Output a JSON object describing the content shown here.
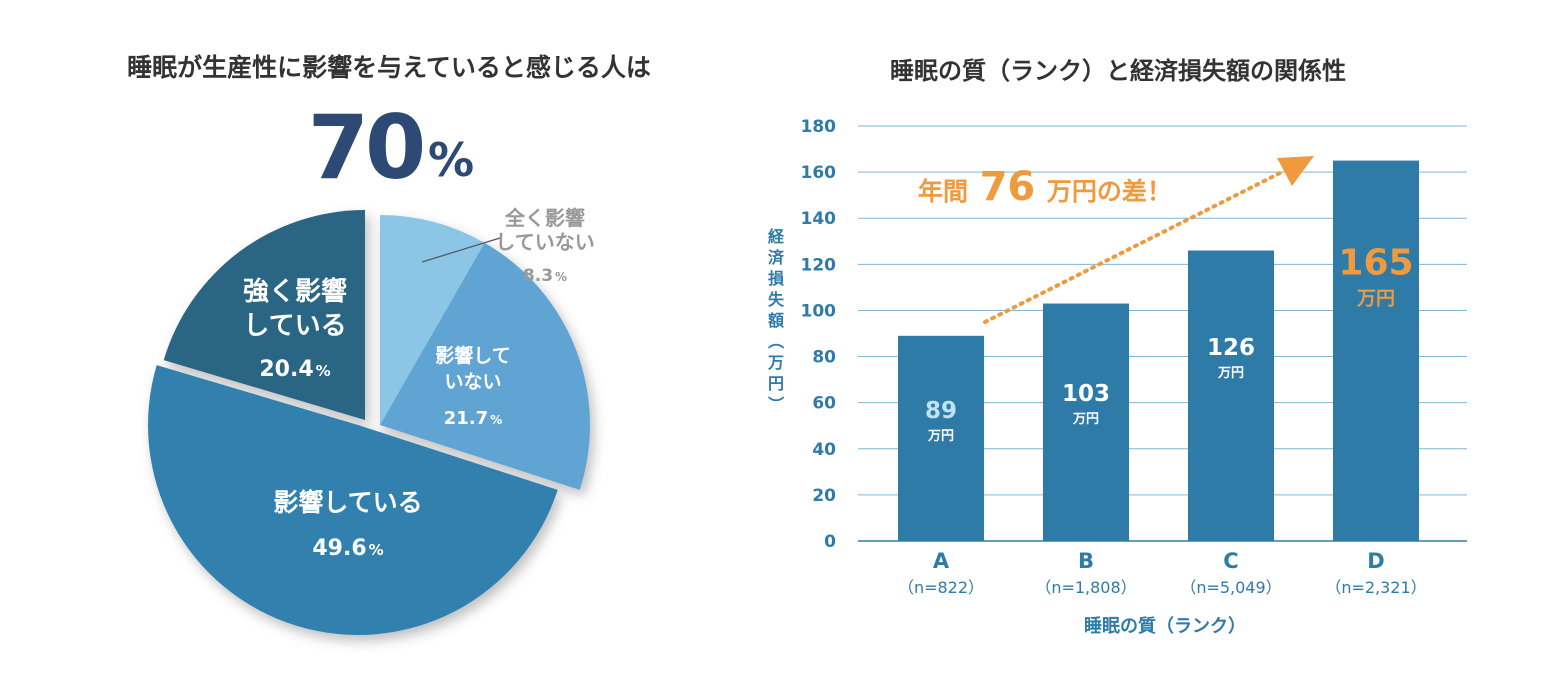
{
  "left_panel": {
    "title": "睡眠が生産性に影響を与えていると感じる人は",
    "headline_value": "70",
    "headline_unit": "%"
  },
  "right_panel": {
    "title": "睡眠の質（ランク）と経済損失額の関係性",
    "annotation_prefix": "年間",
    "annotation_value": "76",
    "annotation_suffix": "万円の差！",
    "bar_unit": "万円"
  },
  "colors": {
    "title_text": "#333333",
    "headline": "#2d4a75",
    "pie_strong": "#2a6684",
    "pie_affect": "#3380ad",
    "pie_not": "#5ea4d3",
    "pie_none": "#8cc6e6",
    "bar": "#2f7ba8",
    "axis_text": "#2f7ba8",
    "grid": "#7fb6d6",
    "accent": "#ef9a3e",
    "gray_text": "#999999"
  },
  "chart_data": [
    {
      "type": "pie",
      "title": "睡眠が生産性に影響を与えていると感じる人は",
      "slices": [
        {
          "label_lines": [
            "全く影響",
            "していない"
          ],
          "value": 8.3,
          "value_text": "8.3",
          "unit": "%"
        },
        {
          "label_lines": [
            "影響して",
            "いない"
          ],
          "value": 21.7,
          "value_text": "21.7",
          "unit": "%"
        },
        {
          "label_lines": [
            "影響している"
          ],
          "value": 49.6,
          "value_text": "49.6",
          "unit": "%"
        },
        {
          "label_lines": [
            "強く影響",
            "している"
          ],
          "value": 20.4,
          "value_text": "20.4",
          "unit": "%"
        }
      ]
    },
    {
      "type": "bar",
      "title": "睡眠の質（ランク）と経済損失額の関係性",
      "categories": [
        "A",
        "B",
        "C",
        "D"
      ],
      "category_sublabels": [
        "（n=822）",
        "（n=1,808）",
        "（n=5,049）",
        "（n=2,321）"
      ],
      "values": [
        89,
        103,
        126,
        165
      ],
      "value_labels": [
        "89",
        "103",
        "126",
        "165"
      ],
      "ylim": [
        0,
        180
      ],
      "yticks": [
        "0",
        "20",
        "40",
        "60",
        "80",
        "100",
        "120",
        "140",
        "160",
        "180"
      ],
      "ylabel": "経済損失額（万円）",
      "xlabel": "睡眠の質（ランク）"
    }
  ]
}
